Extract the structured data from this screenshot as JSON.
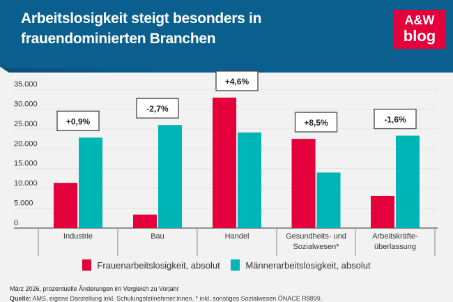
{
  "header": {
    "title": "Arbeitslosigkeit steigt besonders in frauendominierten Branchen",
    "logo_line1": "A&W",
    "logo_line2": "blog"
  },
  "colors": {
    "header": "#0a5f8f",
    "frauen": "#e4003a",
    "maenner": "#00b5b5"
  },
  "chart_data": {
    "type": "bar",
    "categories": [
      [
        "Industrie"
      ],
      [
        "Bau"
      ],
      [
        "Handel"
      ],
      [
        "Gesundheits- und",
        "Sozialwesen*"
      ],
      [
        "Arbeitskräfte-",
        "überlassung"
      ]
    ],
    "series": [
      {
        "name": "Frauenarbeitslosigkeit, absolut",
        "values": [
          11400,
          3400,
          32900,
          22500,
          8100
        ]
      },
      {
        "name": "Männerarbeitslosigkeit, absolut",
        "values": [
          22800,
          26000,
          24100,
          14000,
          23300
        ]
      }
    ],
    "change_labels": [
      "+0,9%",
      "-2,7%",
      "+4,6%",
      "+8,5%",
      "-1,6%"
    ],
    "yticks": [
      "0",
      "5.000",
      "10.000",
      "15.000",
      "20.000",
      "25.000",
      "30.000",
      "35.000"
    ],
    "ylim": [
      0,
      35000
    ],
    "grid": true,
    "legend": "bottom"
  },
  "footer": {
    "note": "März 2026, prozentuelle Änderungen im Vergleich zu Vorjahr",
    "source_label": "Quelle:",
    "source": " AMS, eigene Darstellung inkl. Schulungsteilnehmer:innen. * inkl. sonstiges Sozialwesen ÖNACE R8899."
  }
}
